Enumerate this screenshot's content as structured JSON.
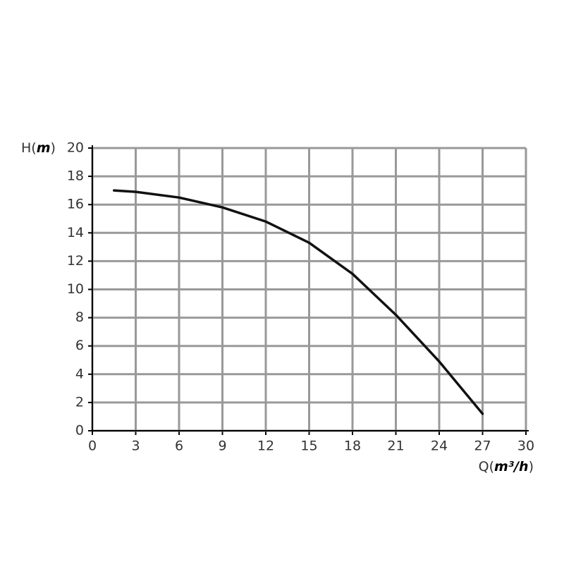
{
  "chart_data": {
    "type": "line",
    "x_label": "Q(m³/h)",
    "y_label": "H(m)",
    "x": [
      1.5,
      3,
      6,
      9,
      12,
      15,
      18,
      21,
      24,
      27
    ],
    "series": [
      {
        "color": "#111111",
        "values": [
          17,
          16.9,
          16.5,
          15.8,
          14.8,
          13.3,
          11.1,
          8.2,
          4.9,
          1.2
        ]
      }
    ],
    "xlim": [
      0,
      30
    ],
    "xticks": [
      0,
      3,
      6,
      9,
      12,
      15,
      18,
      21,
      24,
      27,
      30
    ],
    "ylim": [
      0,
      20
    ],
    "yticks": [
      0,
      2,
      4,
      6,
      8,
      10,
      12,
      14,
      16,
      18,
      20
    ],
    "grid": true
  }
}
